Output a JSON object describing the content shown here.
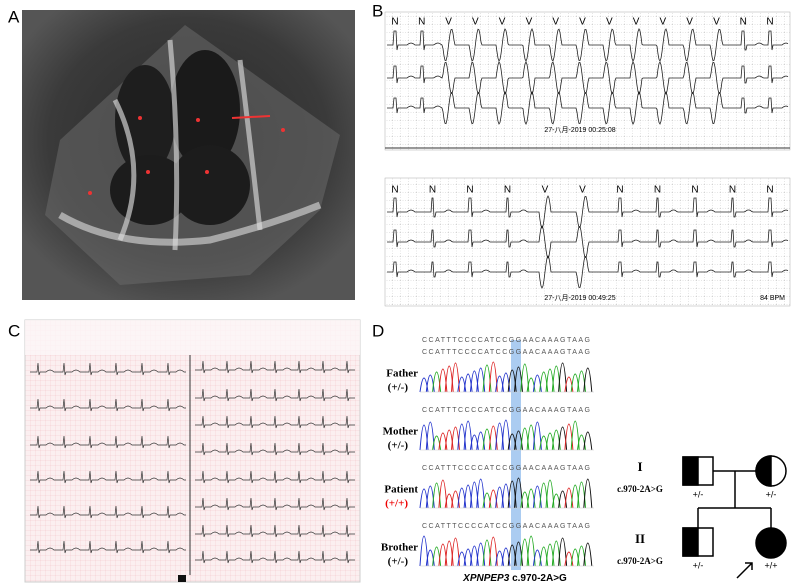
{
  "panel_labels": [
    "A",
    "B",
    "C",
    "D"
  ],
  "ecg_b": {
    "beats_top": [
      "N",
      "N",
      "V",
      "V",
      "V",
      "V",
      "V",
      "V",
      "V",
      "V",
      "V",
      "V",
      "V",
      "N",
      "N"
    ],
    "timestamp_top": "27-八月-2019 00:25:08",
    "beats_bottom": [
      "N",
      "N",
      "N",
      "N",
      "V",
      "V",
      "N",
      "N",
      "N",
      "N",
      "N"
    ],
    "timestamp_bottom": "27-八月-2019 00:49:25",
    "rate": "84 BPM"
  },
  "sequencing": {
    "sequence": "CCATTTCCCCATCCGGAACAAAGTAAG",
    "samples": [
      {
        "name": "Father",
        "genotype": "(+/-)"
      },
      {
        "name": "Mother",
        "genotype": "(+/-)"
      },
      {
        "name": "Patient",
        "genotype": "(+/+)"
      },
      {
        "name": "Brother",
        "genotype": "(+/-)"
      }
    ],
    "gene": "XPNPEP3",
    "variant": "c.970-2A>G"
  },
  "pedigree": {
    "generations": [
      {
        "label": "I",
        "variant": "c.970-2A>G",
        "genotypes": [
          "+/-",
          "+/-"
        ]
      },
      {
        "label": "II",
        "variant": "c.970-2A>G",
        "genotypes": [
          "+/-",
          "+/+"
        ]
      }
    ]
  }
}
